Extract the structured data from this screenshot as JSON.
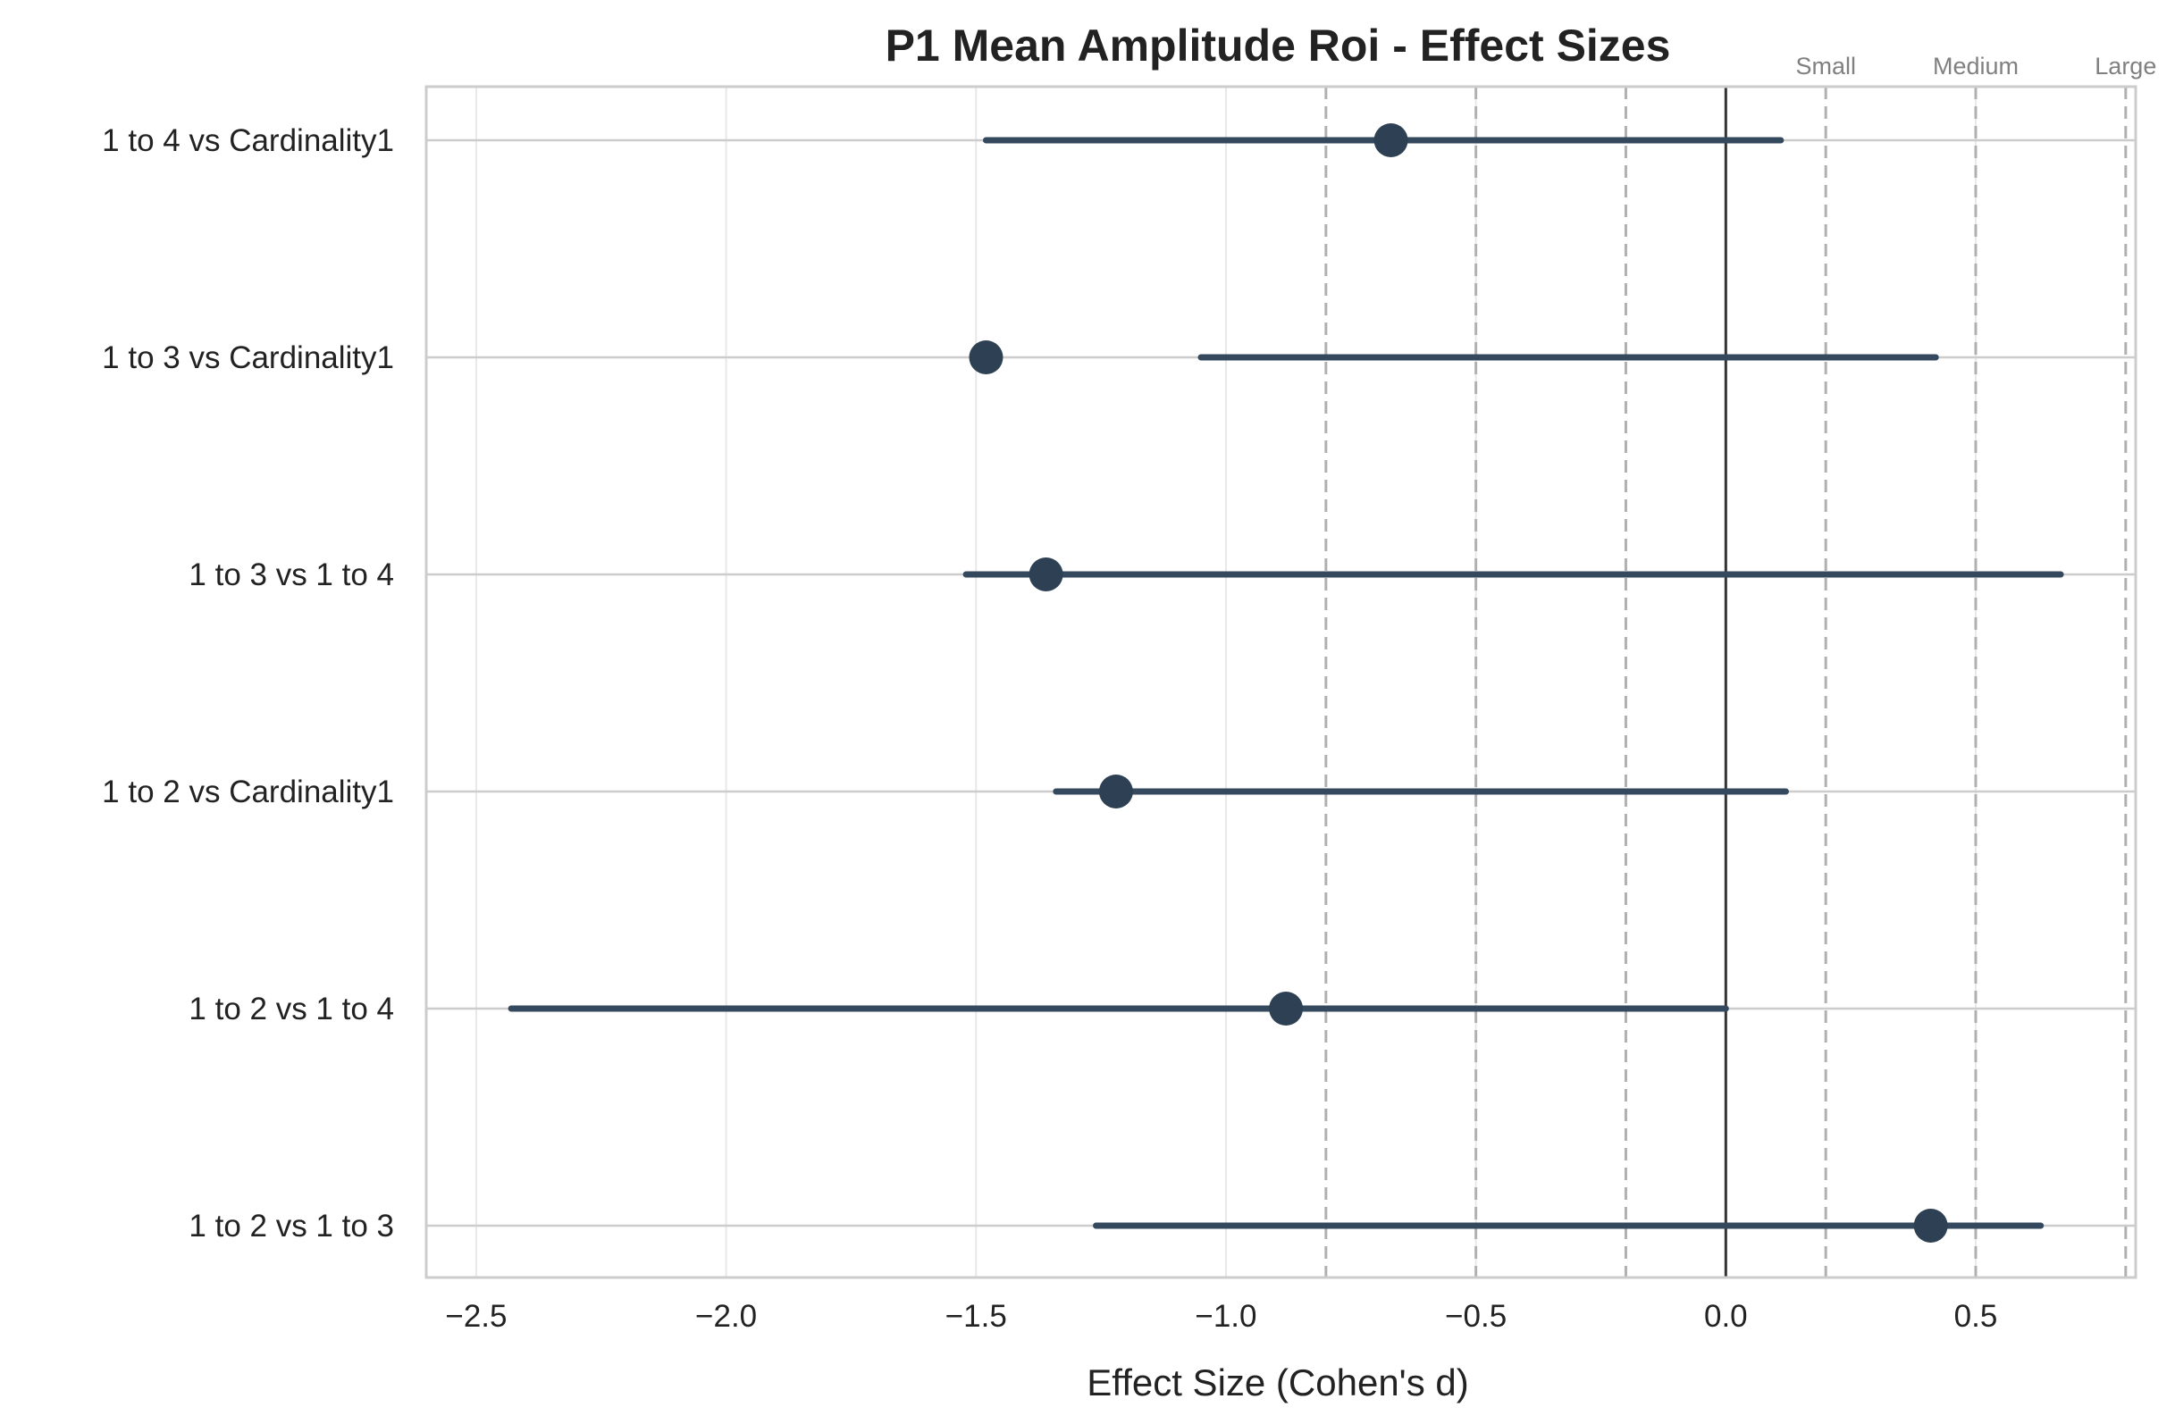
{
  "chart_data": {
    "type": "forest",
    "title": "P1 Mean Amplitude Roi - Effect Sizes",
    "xlabel": "Effect Size (Cohen's d)",
    "ylabel": "",
    "xlim": [
      -2.6,
      0.82
    ],
    "x_ticks": [
      -2.5,
      -2.0,
      -1.5,
      -1.0,
      -0.5,
      0.0,
      0.5
    ],
    "x_tick_labels": [
      "−2.5",
      "−2.0",
      "−1.5",
      "−1.0",
      "−0.5",
      "0.0",
      "0.5"
    ],
    "grid": true,
    "reference_line": 0.0,
    "thresholds": [
      {
        "label": "Small",
        "values": [
          -0.2,
          0.2
        ]
      },
      {
        "label": "Medium",
        "values": [
          -0.5,
          0.5
        ]
      },
      {
        "label": "Large",
        "values": [
          -0.8,
          0.8
        ]
      }
    ],
    "comparisons": [
      {
        "label": "1 to 4 vs Cardinality1",
        "d": -0.67,
        "ci_low": -1.48,
        "ci_high": 0.11
      },
      {
        "label": "1 to 3 vs Cardinality1",
        "d": -1.48,
        "ci_low": -1.05,
        "ci_high": 0.42
      },
      {
        "label": "1 to 3 vs 1 to 4",
        "d": -1.36,
        "ci_low": -1.52,
        "ci_high": 0.67
      },
      {
        "label": "1 to 2 vs Cardinality1",
        "d": -1.22,
        "ci_low": -1.34,
        "ci_high": 0.12
      },
      {
        "label": "1 to 2 vs 1 to 4",
        "d": -0.88,
        "ci_low": -2.43,
        "ci_high": 0.0
      },
      {
        "label": "1 to 2 vs 1 to 3",
        "d": 0.41,
        "ci_low": -1.26,
        "ci_high": 0.63
      }
    ],
    "colors": {
      "marker": "#2e4053",
      "ci_line": "#34495e",
      "reference_line": "#333333",
      "threshold_line": "#b0b0b0",
      "threshold_text": "#808080",
      "grid": "#e8e8e8",
      "row_line": "#cccccc",
      "spine": "#cccccc"
    }
  }
}
